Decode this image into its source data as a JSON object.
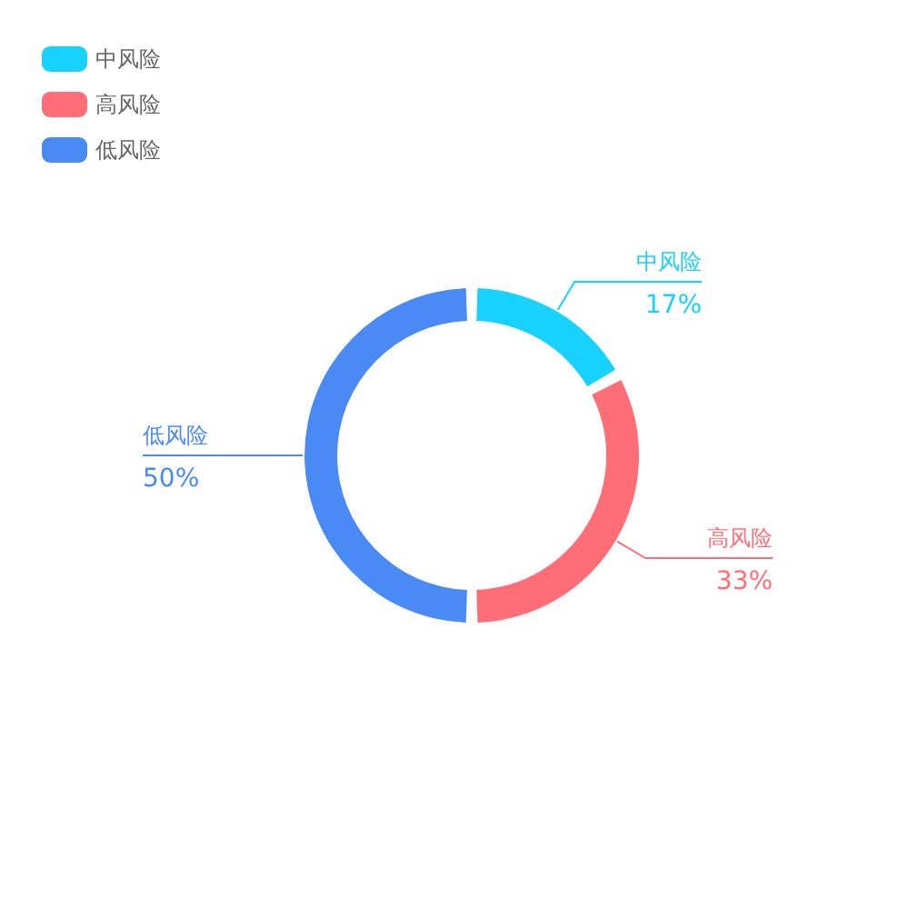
{
  "chart_data": {
    "type": "donut",
    "categories": [
      "中风险",
      "高风险",
      "低风险"
    ],
    "values": [
      17,
      33,
      50
    ],
    "colors": [
      "#17d1ff",
      "#ff6e76",
      "#4a8af4"
    ],
    "value_labels": [
      "17%",
      "33%",
      "50%"
    ],
    "legend": "top left"
  }
}
